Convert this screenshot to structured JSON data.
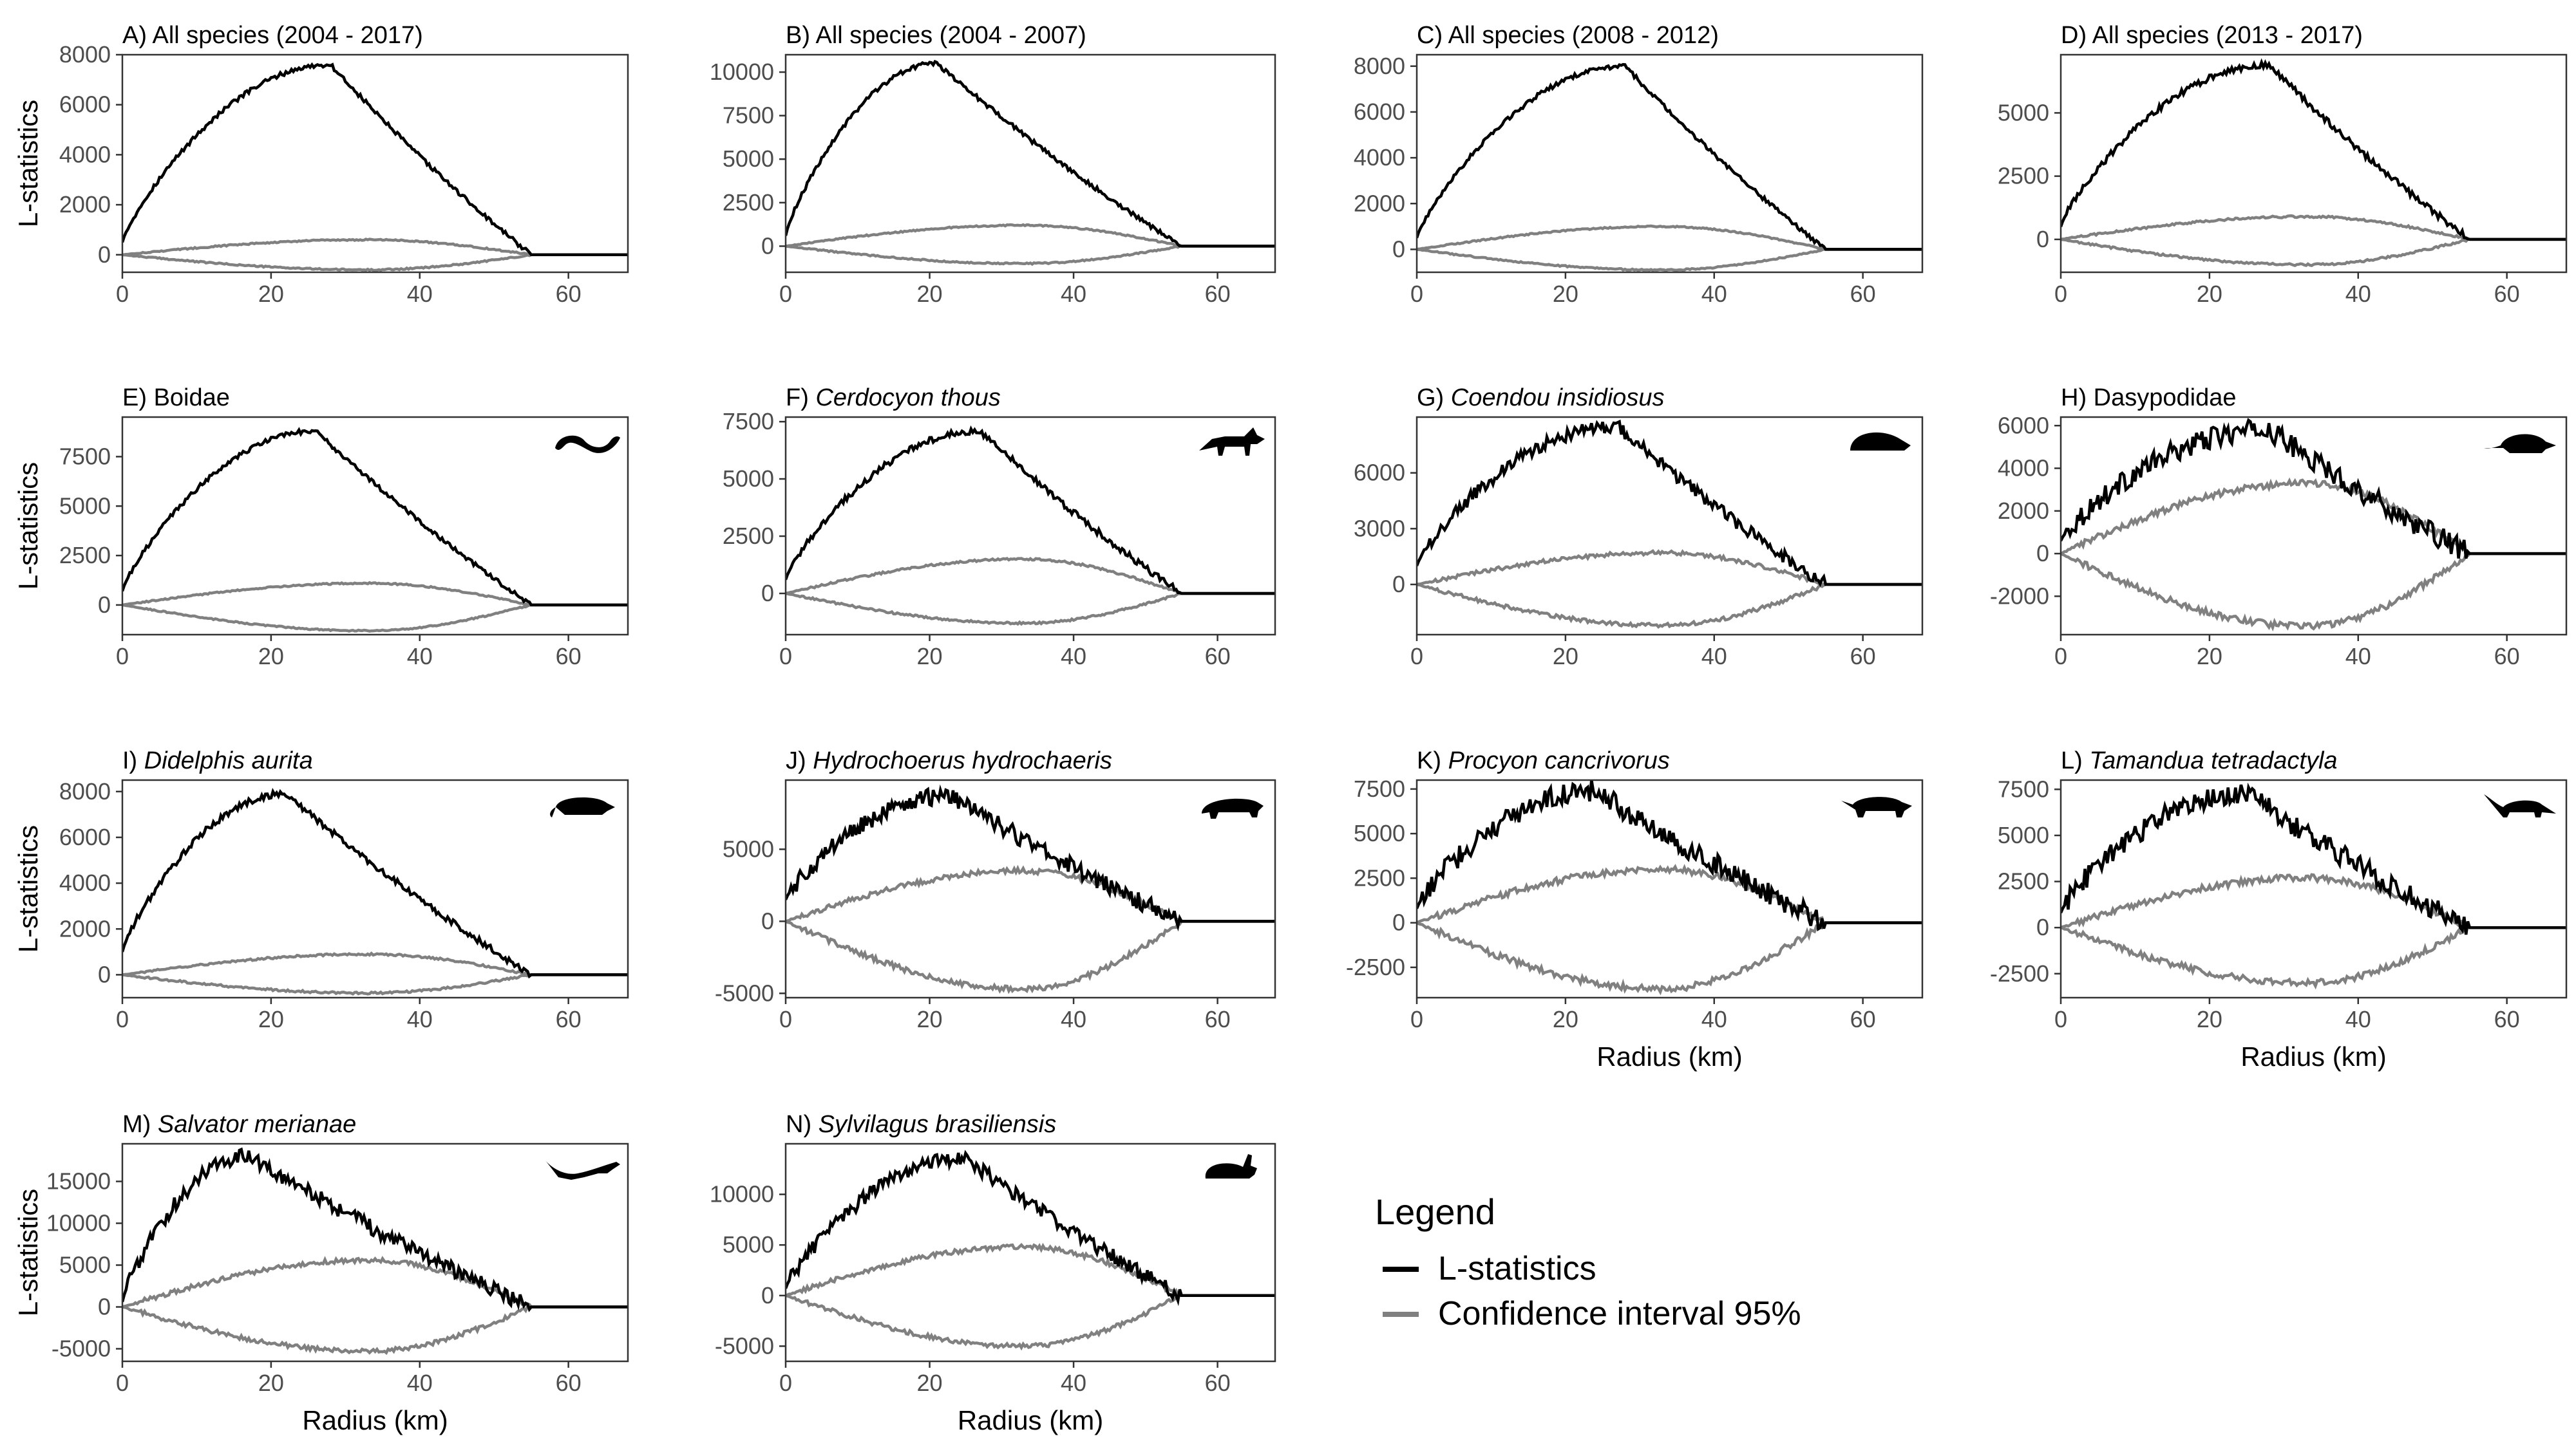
{
  "figure": {
    "x_unit_label": "Radius (km)",
    "y_unit_label": "L-statistics",
    "legend": {
      "title": "Legend",
      "items": [
        {
          "label": "L-statistics",
          "color": "#000000"
        },
        {
          "label": "Confidence interval 95%",
          "color": "#808080"
        }
      ]
    },
    "colors": {
      "l_statistics": "#000000",
      "confidence_interval": "#808080",
      "panel_border": "#333333",
      "tick_text": "#4d4d4d"
    }
  },
  "chart_data": [
    {
      "type": "line",
      "title": "A) All species (2004 - 2017)",
      "title_prefix": "A)",
      "title_name": "All species (2004 - 2017)",
      "italic": false,
      "icon": "",
      "xlim": [
        0,
        68
      ],
      "ylim": [
        -700,
        8000
      ],
      "xticks": [
        0,
        20,
        40,
        60
      ],
      "yticks": [
        0,
        2000,
        4000,
        6000,
        8000
      ],
      "peak_x": 28,
      "peak_y": 7600,
      "ci_upper_peak": 600,
      "ci_lower_peak": -600,
      "zero_x": 55,
      "noise": 0.01,
      "start_y": 500,
      "ylabel": "L-statistics",
      "xlabel": ""
    },
    {
      "type": "line",
      "title": "B) All species (2004 - 2007)",
      "title_prefix": "B)",
      "title_name": "All species (2004 - 2007)",
      "italic": false,
      "icon": "",
      "xlim": [
        0,
        68
      ],
      "ylim": [
        -1500,
        11000
      ],
      "xticks": [
        0,
        20,
        40,
        60
      ],
      "yticks": [
        0,
        2500,
        5000,
        7500,
        10000
      ],
      "peak_x": 21,
      "peak_y": 10500,
      "ci_upper_peak": 1200,
      "ci_lower_peak": -1000,
      "zero_x": 55,
      "noise": 0.01,
      "start_y": 600,
      "ylabel": "",
      "xlabel": ""
    },
    {
      "type": "line",
      "title": "C) All species (2008 - 2012)",
      "title_prefix": "C)",
      "title_name": "All species (2008 - 2012)",
      "italic": false,
      "icon": "",
      "xlim": [
        0,
        68
      ],
      "ylim": [
        -1000,
        8500
      ],
      "xticks": [
        0,
        20,
        40,
        60
      ],
      "yticks": [
        0,
        2000,
        4000,
        6000,
        8000
      ],
      "peak_x": 28,
      "peak_y": 8000,
      "ci_upper_peak": 1000,
      "ci_lower_peak": -900,
      "zero_x": 55,
      "noise": 0.01,
      "start_y": 500,
      "ylabel": "",
      "xlabel": ""
    },
    {
      "type": "line",
      "title": "D) All species (2013 - 2017)",
      "title_prefix": "D)",
      "title_name": "All species (2013 - 2017)",
      "italic": false,
      "icon": "",
      "xlim": [
        0,
        68
      ],
      "ylim": [
        -1300,
        7300
      ],
      "xticks": [
        0,
        20,
        40,
        60
      ],
      "yticks": [
        0,
        2500,
        5000
      ],
      "peak_x": 28,
      "peak_y": 6900,
      "ci_upper_peak": 900,
      "ci_lower_peak": -1000,
      "zero_x": 55,
      "noise": 0.015,
      "start_y": 500,
      "ylabel": "",
      "xlabel": ""
    },
    {
      "type": "line",
      "title": "E) Boidae",
      "title_prefix": "E)",
      "title_name": "Boidae",
      "italic": false,
      "icon": "snake-icon",
      "xlim": [
        0,
        68
      ],
      "ylim": [
        -1500,
        9500
      ],
      "xticks": [
        0,
        20,
        40,
        60
      ],
      "yticks": [
        0,
        2500,
        5000,
        7500
      ],
      "peak_x": 26,
      "peak_y": 8800,
      "ci_upper_peak": 1100,
      "ci_lower_peak": -1300,
      "zero_x": 55,
      "noise": 0.01,
      "start_y": 700,
      "ylabel": "L-statistics",
      "xlabel": ""
    },
    {
      "type": "line",
      "title": "F) Cerdocyon thous",
      "title_prefix": "F)",
      "title_name": "Cerdocyon thous",
      "italic": true,
      "icon": "fox-icon",
      "xlim": [
        0,
        68
      ],
      "ylim": [
        -1800,
        7700
      ],
      "xticks": [
        0,
        20,
        40,
        60
      ],
      "yticks": [
        0,
        2500,
        5000,
        7500
      ],
      "peak_x": 27,
      "peak_y": 7100,
      "ci_upper_peak": 1500,
      "ci_lower_peak": -1300,
      "zero_x": 55,
      "noise": 0.015,
      "start_y": 600,
      "ylabel": "",
      "xlabel": ""
    },
    {
      "type": "line",
      "title": "G) Coendou insidiosus",
      "title_prefix": "G)",
      "title_name": "Coendou insidiosus",
      "italic": true,
      "icon": "porcupine-icon",
      "xlim": [
        0,
        68
      ],
      "ylim": [
        -2700,
        9000
      ],
      "xticks": [
        0,
        20,
        40,
        60
      ],
      "yticks": [
        0,
        3000,
        6000
      ],
      "peak_x": 27,
      "peak_y": 8500,
      "ci_upper_peak": 1700,
      "ci_lower_peak": -2200,
      "zero_x": 55,
      "noise": 0.03,
      "start_y": 1000,
      "ylabel": "",
      "xlabel": ""
    },
    {
      "type": "line",
      "title": "H) Dasypodidae",
      "title_prefix": "H)",
      "title_name": "Dasypodidae",
      "italic": false,
      "icon": "armadillo-icon",
      "xlim": [
        0,
        68
      ],
      "ylim": [
        -3800,
        6400
      ],
      "xticks": [
        0,
        20,
        40,
        60
      ],
      "yticks": [
        -2000,
        0,
        2000,
        4000,
        6000
      ],
      "peak_x": 28,
      "peak_y": 5800,
      "ci_upper_peak": 3300,
      "ci_lower_peak": -3400,
      "zero_x": 55,
      "noise": 0.05,
      "start_y": 600,
      "ylabel": "",
      "xlabel": ""
    },
    {
      "type": "line",
      "title": "I) Didelphis aurita",
      "title_prefix": "I)",
      "title_name": "Didelphis aurita",
      "italic": true,
      "icon": "opossum-icon",
      "xlim": [
        0,
        68
      ],
      "ylim": [
        -1000,
        8500
      ],
      "xticks": [
        0,
        20,
        40,
        60
      ],
      "yticks": [
        0,
        2000,
        4000,
        6000,
        8000
      ],
      "peak_x": 22,
      "peak_y": 7900,
      "ci_upper_peak": 900,
      "ci_lower_peak": -800,
      "zero_x": 55,
      "noise": 0.015,
      "start_y": 1000,
      "ylabel": "L-statistics",
      "xlabel": ""
    },
    {
      "type": "line",
      "title": "J) Hydrochoerus hydrochaeris",
      "title_prefix": "J)",
      "title_name": "Hydrochoerus hydrochaeris",
      "italic": true,
      "icon": "capybara-icon",
      "xlim": [
        0,
        68
      ],
      "ylim": [
        -5300,
        9800
      ],
      "xticks": [
        0,
        20,
        40,
        60
      ],
      "yticks": [
        -5000,
        0,
        5000
      ],
      "peak_x": 23,
      "peak_y": 8700,
      "ci_upper_peak": 3500,
      "ci_lower_peak": -4700,
      "zero_x": 55,
      "noise": 0.04,
      "start_y": 1500,
      "ylabel": "",
      "xlabel": ""
    },
    {
      "type": "line",
      "title": "K) Procyon cancrivorus",
      "title_prefix": "K)",
      "title_name": "Procyon cancrivorus",
      "italic": true,
      "icon": "raccoon-icon",
      "xlim": [
        0,
        68
      ],
      "ylim": [
        -4200,
        8000
      ],
      "xticks": [
        0,
        20,
        40,
        60
      ],
      "yticks": [
        -2500,
        0,
        2500,
        5000,
        7500
      ],
      "peak_x": 24,
      "peak_y": 7400,
      "ci_upper_peak": 3000,
      "ci_lower_peak": -3700,
      "zero_x": 55,
      "noise": 0.05,
      "start_y": 800,
      "ylabel": "",
      "xlabel": "Radius (km)"
    },
    {
      "type": "line",
      "title": "L) Tamandua tetradactyla",
      "title_prefix": "L)",
      "title_name": "Tamandua tetradactyla",
      "italic": true,
      "icon": "anteater-icon",
      "xlim": [
        0,
        68
      ],
      "ylim": [
        -3800,
        8000
      ],
      "xticks": [
        0,
        20,
        40,
        60
      ],
      "yticks": [
        -2500,
        0,
        2500,
        5000,
        7500
      ],
      "peak_x": 25,
      "peak_y": 7300,
      "ci_upper_peak": 2700,
      "ci_lower_peak": -3000,
      "zero_x": 55,
      "noise": 0.05,
      "start_y": 800,
      "ylabel": "",
      "xlabel": "Radius (km)"
    },
    {
      "type": "line",
      "title": "M) Salvator merianae",
      "title_prefix": "M)",
      "title_name": "Salvator merianae",
      "italic": true,
      "icon": "lizard-icon",
      "xlim": [
        0,
        68
      ],
      "ylim": [
        -6500,
        19500
      ],
      "xticks": [
        0,
        20,
        40,
        60
      ],
      "yticks": [
        -5000,
        0,
        5000,
        10000,
        15000
      ],
      "peak_x": 17,
      "peak_y": 18000,
      "ci_upper_peak": 5600,
      "ci_lower_peak": -5300,
      "zero_x": 55,
      "noise": 0.035,
      "start_y": 600,
      "ylabel": "L-statistics",
      "xlabel": "Radius (km)"
    },
    {
      "type": "line",
      "title": "N) Sylvilagus brasiliensis",
      "title_prefix": "N)",
      "title_name": "Sylvilagus brasiliensis",
      "italic": true,
      "icon": "rabbit-icon",
      "xlim": [
        0,
        68
      ],
      "ylim": [
        -6500,
        15000
      ],
      "xticks": [
        0,
        20,
        40,
        60
      ],
      "yticks": [
        -5000,
        0,
        5000,
        10000
      ],
      "peak_x": 25,
      "peak_y": 13600,
      "ci_upper_peak": 4800,
      "ci_lower_peak": -5000,
      "zero_x": 55,
      "noise": 0.035,
      "start_y": 700,
      "ylabel": "",
      "xlabel": "Radius (km)"
    }
  ]
}
